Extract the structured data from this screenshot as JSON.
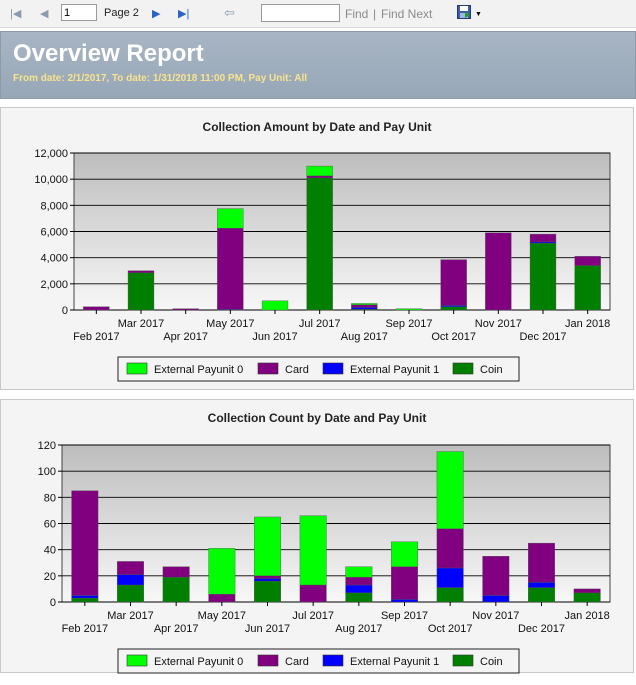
{
  "toolbar": {
    "page_value": "1",
    "page_label": "Page 2",
    "find_label": "Find",
    "separator": "|",
    "find_next_label": "Find Next",
    "icons": [
      "first-page-icon",
      "previous-page-icon",
      "next-page-icon",
      "last-page-icon",
      "back-icon",
      "save-export-icon",
      "dropdown-icon"
    ]
  },
  "report": {
    "title": "Overview Report",
    "subtitle": "From date: 2/1/2017, To date: 1/31/2018 11:00 PM, Pay Unit: All"
  },
  "colors": {
    "External Payunit 0": "#00ff00",
    "Card": "#800080",
    "External Payunit 1": "#0000ff",
    "Coin": "#007f00"
  },
  "chart_data": [
    {
      "type": "bar",
      "stacked": true,
      "title": "Collection Amount by Date and Pay Unit",
      "categories": [
        "Feb 2017",
        "Mar 2017",
        "Apr 2017",
        "May 2017",
        "Jun 2017",
        "Jul 2017",
        "Aug 2017",
        "Sep 2017",
        "Oct 2017",
        "Nov 2017",
        "Dec 2017",
        "Jan 2018"
      ],
      "ylim": [
        0,
        12000
      ],
      "yticks": [
        "0",
        "2,000",
        "4,000",
        "6,000",
        "8,000",
        "10,000",
        "12,000"
      ],
      "series": [
        {
          "name": "Coin",
          "values": [
            0,
            2850,
            0,
            0,
            0,
            10100,
            50,
            0,
            250,
            0,
            5100,
            3400
          ]
        },
        {
          "name": "External Payunit 1",
          "values": [
            0,
            0,
            0,
            50,
            0,
            0,
            150,
            0,
            100,
            0,
            100,
            0
          ]
        },
        {
          "name": "Card",
          "values": [
            250,
            150,
            100,
            6200,
            0,
            150,
            200,
            0,
            3500,
            5900,
            600,
            700
          ]
        },
        {
          "name": "External Payunit 0",
          "values": [
            0,
            0,
            0,
            1500,
            700,
            750,
            100,
            100,
            0,
            0,
            0,
            0
          ]
        }
      ],
      "legend": [
        "External Payunit 0",
        "Card",
        "External Payunit 1",
        "Coin"
      ],
      "legend_position": "bottom",
      "grid": true
    },
    {
      "type": "bar",
      "stacked": true,
      "title": "Collection Count by Date and Pay Unit",
      "categories": [
        "Feb 2017",
        "Mar 2017",
        "Apr 2017",
        "May 2017",
        "Jun 2017",
        "Jul 2017",
        "Aug 2017",
        "Sep 2017",
        "Oct 2017",
        "Nov 2017",
        "Dec 2017",
        "Jan 2018"
      ],
      "ylim": [
        0,
        120
      ],
      "yticks": [
        "0",
        "20",
        "40",
        "60",
        "80",
        "100",
        "120"
      ],
      "series": [
        {
          "name": "Coin",
          "values": [
            3,
            13,
            19,
            0,
            16,
            0,
            7,
            0,
            11,
            0,
            11,
            7
          ]
        },
        {
          "name": "External Payunit 1",
          "values": [
            2,
            8,
            0,
            0,
            2,
            0,
            6,
            2,
            15,
            5,
            4,
            0
          ]
        },
        {
          "name": "Card",
          "values": [
            80,
            10,
            8,
            6,
            2,
            13,
            6,
            25,
            30,
            30,
            30,
            3
          ]
        },
        {
          "name": "External Payunit 0",
          "values": [
            0,
            0,
            0,
            35,
            45,
            53,
            8,
            19,
            59,
            0,
            0,
            0
          ]
        }
      ],
      "legend": [
        "External Payunit 0",
        "Card",
        "External Payunit 1",
        "Coin"
      ],
      "legend_position": "bottom",
      "grid": true
    }
  ]
}
